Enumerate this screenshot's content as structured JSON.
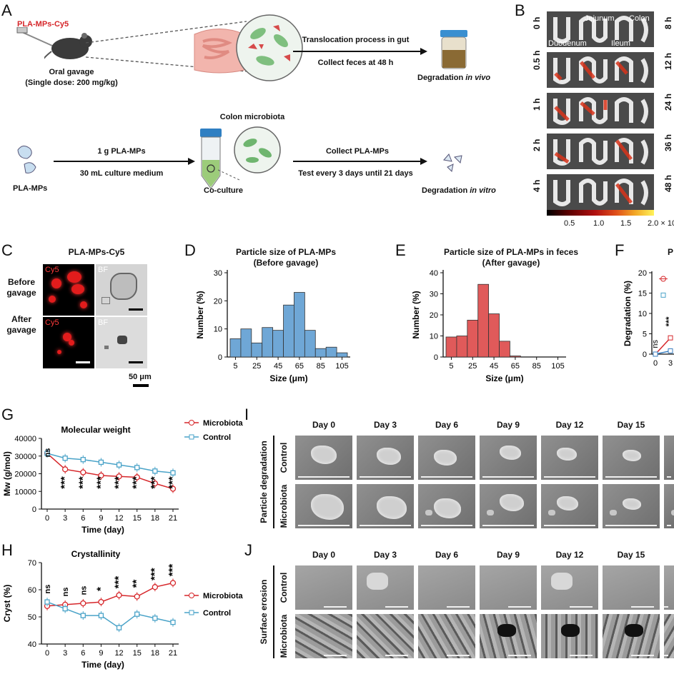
{
  "panelA": {
    "label": "A",
    "compound": "PLA-MPs-Cy5",
    "oral_gavage": "Oral gavage",
    "dose": "(Single dose: 200 mg/kg)",
    "translocation": "Translocation process in gut",
    "collect_feces": "Collect feces at 48 h",
    "degradation_vivo_a": "Degradation ",
    "degradation_vivo_b": "in vivo",
    "colon_microbiota": "Colon microbiota",
    "one_g": "1 g PLA-MPs",
    "culture": "30 mL culture medium",
    "plamps": "PLA-MPs",
    "coculture": "Co-culture",
    "collect_plamps": "Collect PLA-MPs",
    "test_every": "Test every 3 days until 21 days",
    "degradation_vitro_a": "Degradation ",
    "degradation_vitro_b": "in vitro"
  },
  "panelB": {
    "label": "B",
    "left_times": [
      "0 h",
      "0.5 h",
      "1 h",
      "2 h",
      "4 h"
    ],
    "right_times": [
      "8 h",
      "12 h",
      "24 h",
      "36 h",
      "48 h"
    ],
    "segments": [
      "Jejunum",
      "Colon",
      "Duodenum",
      "Ileum"
    ],
    "scale_ticks": [
      "0.5",
      "1.0",
      "1.5",
      "2.0 × 10"
    ]
  },
  "panelC": {
    "label": "C",
    "title": "PLA-MPs-Cy5",
    "before": [
      "Before",
      "gavage"
    ],
    "after": [
      "After",
      "gavage"
    ],
    "cy5": "Cy5",
    "bf": "BF",
    "scale": "50 μm"
  },
  "panelD": {
    "label": "D",
    "chart_data": {
      "type": "bar",
      "title": "Particle size of PLA-MPs",
      "subtitle": "(Before gavage)",
      "xlabel": "Size (μm)",
      "ylabel": "Number (%)",
      "xticks": [
        "5",
        "25",
        "45",
        "65",
        "85",
        "105"
      ],
      "bin_centers": [
        5,
        15,
        25,
        35,
        45,
        55,
        65,
        75,
        85,
        95,
        105
      ],
      "values": [
        6.5,
        10,
        5,
        10.5,
        9.5,
        18.5,
        23,
        9.5,
        3,
        3.5,
        1.5
      ],
      "ylim": [
        0,
        30
      ],
      "yticks": [
        0,
        10,
        20,
        30
      ],
      "color": "#6fa7d6"
    }
  },
  "panelE": {
    "label": "E",
    "chart_data": {
      "type": "bar",
      "title": "Particle size of PLA-MPs in feces",
      "subtitle": "(After gavage)",
      "xlabel": "Size (μm)",
      "ylabel": "Number (%)",
      "xticks": [
        "5",
        "25",
        "45",
        "65",
        "85",
        "105"
      ],
      "bin_centers": [
        5,
        15,
        25,
        35,
        45,
        55,
        65,
        75,
        85,
        95,
        105
      ],
      "values": [
        9.5,
        10,
        17.5,
        34.5,
        20.5,
        7.5,
        0.5,
        0,
        0,
        0,
        0
      ],
      "ylim": [
        0,
        40
      ],
      "yticks": [
        0,
        10,
        20,
        30,
        40
      ],
      "color": "#e05a5a"
    }
  },
  "panelF": {
    "label": "F",
    "title_partial": "P",
    "chart_data": {
      "type": "line",
      "ylabel": "Degradation (%)",
      "ylim": [
        0,
        20
      ],
      "yticks": [
        0,
        5,
        10,
        15,
        20
      ],
      "xticks": [
        "0",
        "3"
      ],
      "annotations": [
        "ns",
        "***"
      ],
      "series": [
        {
          "color": "#d6262a",
          "x": [
            0,
            3
          ],
          "values": [
            0,
            4
          ]
        },
        {
          "color": "#3a7ebf",
          "x": [
            0,
            3
          ],
          "values": [
            0,
            0.8
          ]
        }
      ]
    }
  },
  "panelG": {
    "label": "G",
    "chart_data": {
      "type": "line",
      "title": "Molecular weight",
      "xlabel": "Time (day)",
      "ylabel": "Mw (g/mol)",
      "x": [
        0,
        3,
        6,
        9,
        12,
        15,
        18,
        21
      ],
      "ylim": [
        0,
        40000
      ],
      "yticks": [
        0,
        10000,
        20000,
        30000,
        40000
      ],
      "series": [
        {
          "name": "Microbiota",
          "color": "#d6262a",
          "values": [
            31500,
            22500,
            20800,
            19000,
            18500,
            18000,
            14500,
            11500
          ]
        },
        {
          "name": "Control",
          "color": "#4aa3c8",
          "values": [
            31500,
            28800,
            28000,
            26500,
            25000,
            23500,
            21500,
            20500
          ]
        }
      ],
      "annotations": [
        "ns",
        "***",
        "***",
        "***",
        "***",
        "***",
        "***",
        "***"
      ]
    }
  },
  "panelH": {
    "label": "H",
    "chart_data": {
      "type": "line",
      "title": "Crystallinity",
      "xlabel": "Time (day)",
      "ylabel": "Cryst (%)",
      "x": [
        0,
        3,
        6,
        9,
        12,
        15,
        18,
        21
      ],
      "ylim": [
        40,
        70
      ],
      "yticks": [
        40,
        50,
        60,
        70
      ],
      "series": [
        {
          "name": "Microbiota",
          "color": "#d6262a",
          "values": [
            54,
            54.5,
            55,
            55.5,
            58,
            57.5,
            61,
            62.5
          ]
        },
        {
          "name": "Control",
          "color": "#4aa3c8",
          "values": [
            55.5,
            53,
            50.5,
            50.5,
            46,
            51,
            49.5,
            48
          ]
        }
      ],
      "annotations": [
        "ns",
        "ns",
        "ns",
        "*",
        "***",
        "**",
        "***",
        "***"
      ]
    }
  },
  "panelI": {
    "label": "I",
    "side": "Particle degradation",
    "rows": [
      "Control",
      "Microbiota"
    ],
    "days": [
      "Day 0",
      "Day 3",
      "Day 6",
      "Day 9",
      "Day 12",
      "Day 15"
    ]
  },
  "panelJ": {
    "label": "J",
    "side": "Surface erosion",
    "rows": [
      "Control",
      "Microbiota"
    ],
    "days": [
      "Day 0",
      "Day 3",
      "Day 6",
      "Day 9",
      "Day 12",
      "Day 15"
    ]
  }
}
